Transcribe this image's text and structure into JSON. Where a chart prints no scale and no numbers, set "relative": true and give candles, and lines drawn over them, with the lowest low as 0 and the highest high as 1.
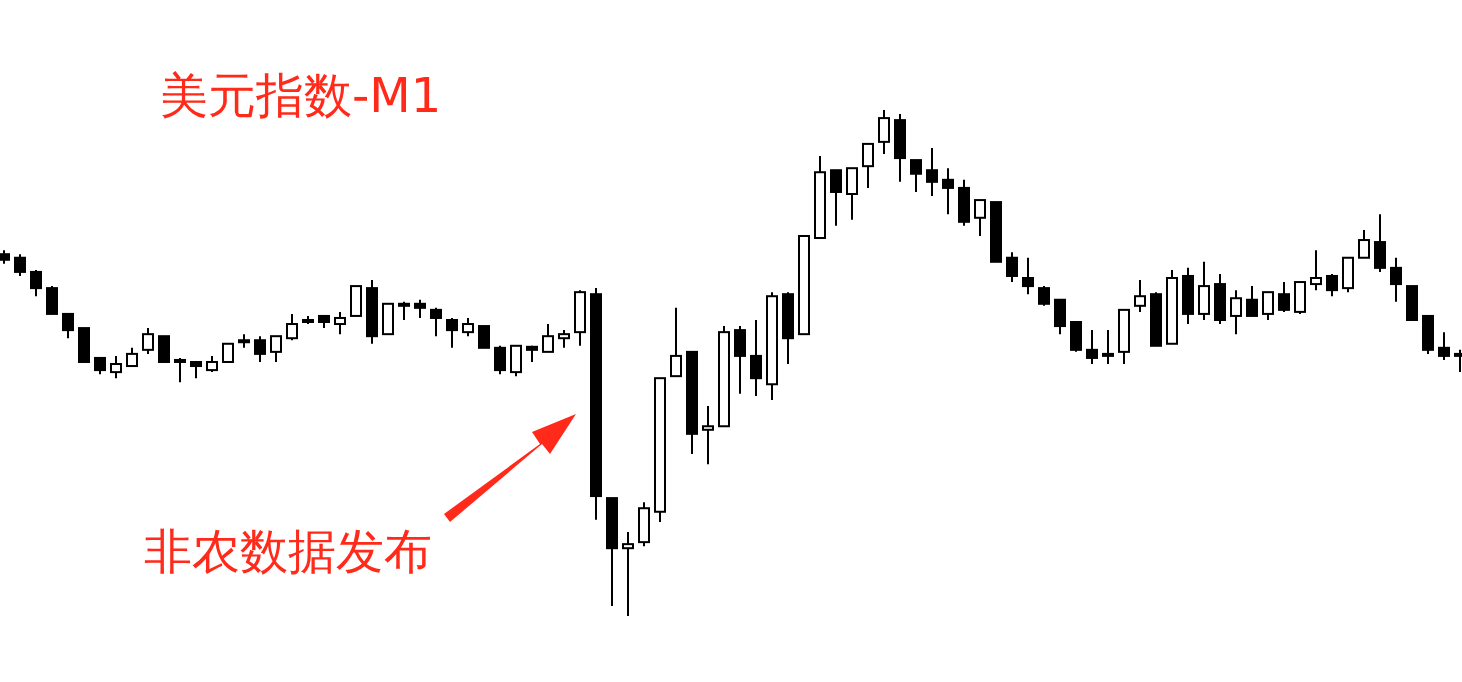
{
  "chart_data": {
    "type": "candlestick",
    "title": "美元指数-M1",
    "annotations": [
      "非农数据发布"
    ],
    "relative": true,
    "color": "#000000",
    "categories": [
      null,
      null,
      null,
      null,
      null,
      null,
      null,
      null,
      null,
      null,
      null,
      null,
      null,
      null,
      null,
      null,
      null,
      null,
      null,
      null,
      null,
      null,
      null,
      null,
      null,
      null,
      null,
      null,
      null,
      null,
      null,
      null,
      null,
      null,
      null,
      null,
      null,
      null,
      null,
      null,
      null,
      null,
      null,
      null,
      null,
      null,
      null,
      null,
      null,
      null,
      null,
      null,
      null,
      null,
      null,
      null,
      null,
      null,
      null,
      null,
      null,
      null,
      null,
      null,
      null,
      null,
      null,
      null,
      null,
      null,
      null,
      null,
      null,
      null,
      null,
      null,
      null,
      null,
      null,
      null,
      null,
      null,
      null,
      null,
      null,
      null,
      null,
      null,
      null,
      null,
      null,
      null
    ],
    "ohlc": [
      [
        0.715,
        0.723,
        0.696,
        0.704
      ],
      [
        0.708,
        0.715,
        0.672,
        0.68
      ],
      [
        0.68,
        0.684,
        0.632,
        0.648
      ],
      [
        0.648,
        0.652,
        0.597,
        0.597
      ],
      [
        0.597,
        0.597,
        0.549,
        0.565
      ],
      [
        0.569,
        0.569,
        0.502,
        0.502
      ],
      [
        0.51,
        0.51,
        0.478,
        0.486
      ],
      [
        0.482,
        0.514,
        0.47,
        0.498
      ],
      [
        0.494,
        0.53,
        0.494,
        0.518
      ],
      [
        0.526,
        0.569,
        0.518,
        0.557
      ],
      [
        0.553,
        0.553,
        0.502,
        0.502
      ],
      [
        0.506,
        0.51,
        0.462,
        0.504
      ],
      [
        0.502,
        0.502,
        0.47,
        0.494
      ],
      [
        0.486,
        0.514,
        0.482,
        0.502
      ],
      [
        0.502,
        0.538,
        0.502,
        0.538
      ],
      [
        0.542,
        0.557,
        0.53,
        0.545
      ],
      [
        0.545,
        0.553,
        0.502,
        0.518
      ],
      [
        0.522,
        0.553,
        0.502,
        0.553
      ],
      [
        0.549,
        0.597,
        0.545,
        0.577
      ],
      [
        0.585,
        0.593,
        0.577,
        0.583
      ],
      [
        0.593,
        0.593,
        0.569,
        0.581
      ],
      [
        0.577,
        0.601,
        0.557,
        0.589
      ],
      [
        0.593,
        0.652,
        0.593,
        0.652
      ],
      [
        0.648,
        0.664,
        0.538,
        0.553
      ],
      [
        0.557,
        0.617,
        0.557,
        0.617
      ],
      [
        0.617,
        0.621,
        0.585,
        0.613
      ],
      [
        0.617,
        0.625,
        0.589,
        0.609
      ],
      [
        0.605,
        0.609,
        0.553,
        0.589
      ],
      [
        0.585,
        0.589,
        0.53,
        0.565
      ],
      [
        0.561,
        0.589,
        0.553,
        0.577
      ],
      [
        0.573,
        0.573,
        0.53,
        0.53
      ],
      [
        0.53,
        0.534,
        0.478,
        0.486
      ],
      [
        0.482,
        0.534,
        0.474,
        0.534
      ],
      [
        0.532,
        0.534,
        0.502,
        0.526
      ],
      [
        0.522,
        0.577,
        0.522,
        0.553
      ],
      [
        0.549,
        0.565,
        0.53,
        0.557
      ],
      [
        0.561,
        0.644,
        0.534,
        0.64
      ],
      [
        0.636,
        0.648,
        0.19,
        0.237
      ],
      [
        0.233,
        0.233,
        0.02,
        0.134
      ],
      [
        0.134,
        0.166,
        0,
        0.142
      ],
      [
        0.146,
        0.225,
        0.138,
        0.213
      ],
      [
        0.206,
        0.47,
        0.186,
        0.47
      ],
      [
        0.474,
        0.609,
        0.474,
        0.514
      ],
      [
        0.522,
        0.522,
        0.32,
        0.36
      ],
      [
        0.368,
        0.415,
        0.3,
        0.375
      ],
      [
        0.375,
        0.573,
        0.375,
        0.561
      ],
      [
        0.565,
        0.573,
        0.439,
        0.514
      ],
      [
        0.514,
        0.585,
        0.435,
        0.47
      ],
      [
        0.458,
        0.64,
        0.427,
        0.632
      ],
      [
        0.636,
        0.64,
        0.498,
        0.549
      ],
      [
        0.557,
        0.751,
        0.557,
        0.751
      ],
      [
        0.747,
        0.909,
        0.747,
        0.877
      ],
      [
        0.881,
        0.881,
        0.771,
        0.838
      ],
      [
        0.834,
        0.885,
        0.783,
        0.885
      ],
      [
        0.889,
        0.933,
        0.846,
        0.933
      ],
      [
        0.937,
        1,
        0.913,
        0.984
      ],
      [
        0.98,
        0.992,
        0.858,
        0.905
      ],
      [
        0.901,
        0.901,
        0.838,
        0.874
      ],
      [
        0.881,
        0.925,
        0.83,
        0.858
      ],
      [
        0.862,
        0.885,
        0.794,
        0.846
      ],
      [
        0.846,
        0.862,
        0.771,
        0.779
      ],
      [
        0.787,
        0.822,
        0.751,
        0.822
      ],
      [
        0.818,
        0.818,
        0.7,
        0.7
      ],
      [
        0.708,
        0.719,
        0.66,
        0.672
      ],
      [
        0.668,
        0.708,
        0.636,
        0.652
      ],
      [
        0.648,
        0.652,
        0.613,
        0.617
      ],
      [
        0.625,
        0.625,
        0.557,
        0.573
      ],
      [
        0.581,
        0.581,
        0.522,
        0.526
      ],
      [
        0.526,
        0.565,
        0.498,
        0.51
      ],
      [
        0.518,
        0.565,
        0.498,
        0.516
      ],
      [
        0.522,
        0.605,
        0.498,
        0.605
      ],
      [
        0.613,
        0.664,
        0.601,
        0.632
      ],
      [
        0.636,
        0.64,
        0.534,
        0.534
      ],
      [
        0.538,
        0.684,
        0.538,
        0.668
      ],
      [
        0.672,
        0.688,
        0.577,
        0.597
      ],
      [
        0.597,
        0.7,
        0.585,
        0.652
      ],
      [
        0.656,
        0.676,
        0.577,
        0.585
      ],
      [
        0.593,
        0.644,
        0.557,
        0.628
      ],
      [
        0.625,
        0.652,
        0.593,
        0.593
      ],
      [
        0.597,
        0.64,
        0.585,
        0.64
      ],
      [
        0.636,
        0.66,
        0.601,
        0.605
      ],
      [
        0.601,
        0.66,
        0.597,
        0.66
      ],
      [
        0.656,
        0.723,
        0.644,
        0.668
      ],
      [
        0.672,
        0.676,
        0.632,
        0.644
      ],
      [
        0.648,
        0.708,
        0.64,
        0.708
      ],
      [
        0.708,
        0.763,
        0.708,
        0.743
      ],
      [
        0.739,
        0.794,
        0.68,
        0.688
      ],
      [
        0.688,
        0.708,
        0.621,
        0.656
      ],
      [
        0.652,
        0.652,
        0.585,
        0.585
      ],
      [
        0.593,
        0.593,
        0.518,
        0.526
      ],
      [
        0.53,
        0.561,
        0.506,
        0.514
      ],
      [
        0.518,
        0.526,
        0.482,
        0.516
      ]
    ]
  }
}
